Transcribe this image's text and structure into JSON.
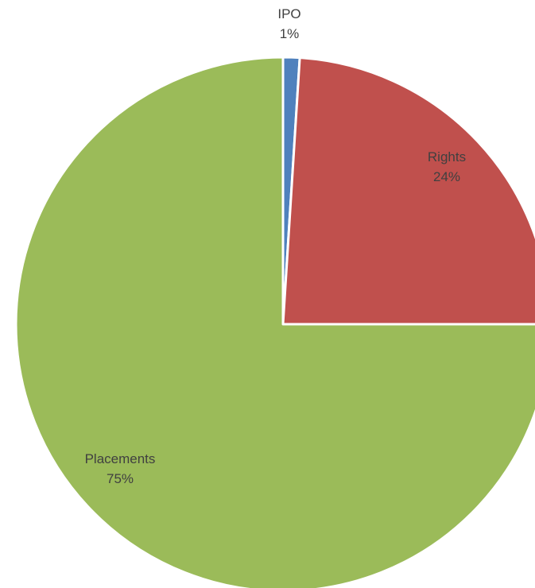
{
  "chart_data": {
    "type": "pie",
    "title": "",
    "series": [
      {
        "values": [
          1,
          24,
          75
        ]
      }
    ],
    "slices": [
      {
        "label": "IPO",
        "value": 1,
        "percent_label": "1%",
        "color": "#4F81BD"
      },
      {
        "label": "Rights",
        "value": 24,
        "percent_label": "24%",
        "color": "#C0504D"
      },
      {
        "label": "Placements",
        "value": 75,
        "percent_label": "75%",
        "color": "#9BBB59"
      }
    ],
    "start_angle_deg": 0,
    "direction": "clockwise",
    "legend": "none",
    "slice_border_color": "#FFFFFF"
  }
}
